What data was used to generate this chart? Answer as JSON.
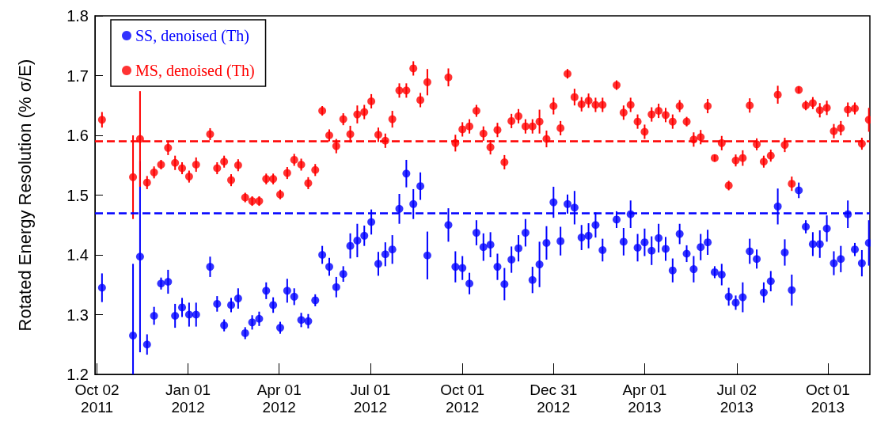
{
  "chart_data": {
    "type": "scatter",
    "ylabel": "Rotated Energy Resolution (% σ/E)",
    "xlim": [
      "2011-09-30",
      "2013-11-12"
    ],
    "xticks": [
      {
        "value": "2011-10-02",
        "label": "Oct 02\n2011"
      },
      {
        "value": "2012-01-01",
        "label": "Jan 01\n2012"
      },
      {
        "value": "2012-04-01",
        "label": "Apr 01\n2012"
      },
      {
        "value": "2012-07-01",
        "label": "Jul 01\n2012"
      },
      {
        "value": "2012-10-01",
        "label": "Oct 01\n2012"
      },
      {
        "value": "2012-12-31",
        "label": "Dec 31\n2012"
      },
      {
        "value": "2013-04-01",
        "label": "Apr 01\n2013"
      },
      {
        "value": "2013-07-02",
        "label": "Jul 02\n2013"
      },
      {
        "value": "2013-10-01",
        "label": "Oct 01\n2013"
      }
    ],
    "ylim": [
      1.2,
      1.8
    ],
    "yticks": [
      1.2,
      1.3,
      1.4,
      1.5,
      1.6,
      1.7,
      1.8
    ],
    "grid": false,
    "legend": "top left",
    "marker": "circle",
    "ref_lines": [
      {
        "axis": "y",
        "value": 1.59,
        "color": "#ff0000",
        "line_style": "dashed"
      },
      {
        "axis": "y",
        "value": 1.47,
        "color": "#0000ff",
        "line_style": "dashed"
      }
    ],
    "series": [
      {
        "name": "SS, denoised (Th)",
        "color": "#0000ff",
        "x": [
          "2011-10-07",
          "2011-11-07",
          "2011-11-14",
          "2011-11-21",
          "2011-11-28",
          "2011-12-05",
          "2011-12-12",
          "2011-12-19",
          "2011-12-26",
          "2012-01-02",
          "2012-01-09",
          "2012-01-23",
          "2012-01-30",
          "2012-02-06",
          "2012-02-13",
          "2012-02-20",
          "2012-02-27",
          "2012-03-05",
          "2012-03-12",
          "2012-03-19",
          "2012-03-26",
          "2012-04-02",
          "2012-04-09",
          "2012-04-16",
          "2012-04-23",
          "2012-04-30",
          "2012-05-07",
          "2012-05-14",
          "2012-05-21",
          "2012-05-28",
          "2012-06-04",
          "2012-06-11",
          "2012-06-18",
          "2012-06-25",
          "2012-07-02",
          "2012-07-09",
          "2012-07-16",
          "2012-07-23",
          "2012-07-30",
          "2012-08-06",
          "2012-08-13",
          "2012-08-20",
          "2012-08-27",
          "2012-09-17",
          "2012-09-24",
          "2012-10-01",
          "2012-10-08",
          "2012-10-15",
          "2012-10-22",
          "2012-10-29",
          "2012-11-05",
          "2012-11-12",
          "2012-11-19",
          "2012-11-26",
          "2012-12-03",
          "2012-12-10",
          "2012-12-17",
          "2012-12-24",
          "2012-12-31",
          "2013-01-07",
          "2013-01-14",
          "2013-01-21",
          "2013-01-28",
          "2013-02-04",
          "2013-02-11",
          "2013-02-18",
          "2013-03-04",
          "2013-03-11",
          "2013-03-18",
          "2013-03-25",
          "2013-04-01",
          "2013-04-08",
          "2013-04-15",
          "2013-04-22",
          "2013-04-29",
          "2013-05-06",
          "2013-05-13",
          "2013-05-20",
          "2013-05-27",
          "2013-06-03",
          "2013-06-10",
          "2013-06-17",
          "2013-06-24",
          "2013-07-01",
          "2013-07-08",
          "2013-07-15",
          "2013-07-22",
          "2013-07-29",
          "2013-08-05",
          "2013-08-12",
          "2013-08-19",
          "2013-08-26",
          "2013-09-02",
          "2013-09-09",
          "2013-09-16",
          "2013-09-23",
          "2013-09-30",
          "2013-10-07",
          "2013-10-14",
          "2013-10-21",
          "2013-10-28",
          "2013-11-04",
          "2013-11-11"
        ],
        "values": [
          1.345,
          1.265,
          1.397,
          1.25,
          1.298,
          1.352,
          1.355,
          1.298,
          1.312,
          1.3,
          1.3,
          1.38,
          1.318,
          1.282,
          1.316,
          1.327,
          1.269,
          1.287,
          1.293,
          1.34,
          1.316,
          1.278,
          1.34,
          1.33,
          1.291,
          1.289,
          1.324,
          1.4,
          1.38,
          1.346,
          1.368,
          1.415,
          1.424,
          1.432,
          1.455,
          1.385,
          1.401,
          1.409,
          1.477,
          1.536,
          1.485,
          1.515,
          1.399,
          1.45,
          1.38,
          1.378,
          1.352,
          1.437,
          1.413,
          1.417,
          1.38,
          1.351,
          1.392,
          1.411,
          1.437,
          1.358,
          1.384,
          1.42,
          1.488,
          1.423,
          1.485,
          1.479,
          1.429,
          1.432,
          1.45,
          1.408,
          1.459,
          1.422,
          1.468,
          1.412,
          1.421,
          1.407,
          1.428,
          1.41,
          1.374,
          1.435,
          1.402,
          1.376,
          1.413,
          1.421,
          1.371,
          1.367,
          1.33,
          1.32,
          1.329,
          1.406,
          1.393,
          1.337,
          1.356,
          1.481,
          1.404,
          1.341,
          1.508,
          1.447,
          1.418,
          1.418,
          1.444,
          1.386,
          1.393,
          1.468,
          1.409,
          1.386,
          1.42
        ],
        "errors": [
          0.024,
          [
            1.2,
            1.385
          ],
          0.16,
          0.017,
          0.015,
          0.01,
          0.02,
          0.02,
          0.016,
          0.02,
          0.02,
          0.017,
          0.013,
          0.01,
          0.012,
          0.017,
          0.01,
          0.012,
          0.012,
          0.014,
          0.013,
          0.01,
          0.02,
          0.014,
          0.012,
          0.012,
          0.01,
          0.015,
          0.015,
          0.017,
          0.013,
          0.021,
          0.028,
          0.017,
          0.021,
          0.02,
          0.02,
          0.024,
          0.025,
          0.023,
          0.025,
          0.023,
          0.04,
          0.028,
          0.026,
          0.02,
          0.018,
          0.021,
          0.023,
          0.021,
          0.022,
          0.027,
          0.022,
          0.022,
          0.023,
          0.022,
          0.038,
          0.028,
          0.026,
          0.024,
          0.016,
          0.028,
          0.021,
          0.021,
          0.021,
          0.019,
          0.014,
          0.023,
          0.023,
          0.023,
          0.023,
          0.024,
          0.024,
          0.02,
          0.02,
          0.017,
          0.014,
          0.022,
          0.022,
          0.021,
          0.01,
          0.018,
          0.015,
          0.012,
          0.025,
          0.021,
          0.016,
          0.017,
          0.017,
          0.03,
          0.022,
          0.026,
          0.013,
          0.011,
          0.02,
          0.023,
          0.022,
          0.02,
          0.022,
          0.023,
          0.011,
          0.022,
          0.038
        ]
      },
      {
        "name": "MS, denoised (Th)",
        "color": "#ff0000",
        "x": [
          "2011-10-07",
          "2011-11-07",
          "2011-11-14",
          "2011-11-21",
          "2011-11-28",
          "2011-12-05",
          "2011-12-12",
          "2011-12-19",
          "2011-12-26",
          "2012-01-02",
          "2012-01-09",
          "2012-01-23",
          "2012-01-30",
          "2012-02-06",
          "2012-02-13",
          "2012-02-20",
          "2012-02-27",
          "2012-03-05",
          "2012-03-12",
          "2012-03-19",
          "2012-03-26",
          "2012-04-02",
          "2012-04-09",
          "2012-04-16",
          "2012-04-23",
          "2012-04-30",
          "2012-05-07",
          "2012-05-14",
          "2012-05-21",
          "2012-05-28",
          "2012-06-04",
          "2012-06-11",
          "2012-06-18",
          "2012-06-25",
          "2012-07-02",
          "2012-07-09",
          "2012-07-16",
          "2012-07-23",
          "2012-07-30",
          "2012-08-06",
          "2012-08-13",
          "2012-08-20",
          "2012-08-27",
          "2012-09-17",
          "2012-09-24",
          "2012-10-01",
          "2012-10-08",
          "2012-10-15",
          "2012-10-22",
          "2012-10-29",
          "2012-11-05",
          "2012-11-12",
          "2012-11-19",
          "2012-11-26",
          "2012-12-03",
          "2012-12-10",
          "2012-12-17",
          "2012-12-24",
          "2012-12-31",
          "2013-01-07",
          "2013-01-14",
          "2013-01-21",
          "2013-01-28",
          "2013-02-04",
          "2013-02-11",
          "2013-02-18",
          "2013-03-04",
          "2013-03-11",
          "2013-03-18",
          "2013-03-25",
          "2013-04-01",
          "2013-04-08",
          "2013-04-15",
          "2013-04-22",
          "2013-04-29",
          "2013-05-06",
          "2013-05-13",
          "2013-05-20",
          "2013-05-27",
          "2013-06-03",
          "2013-06-10",
          "2013-06-17",
          "2013-06-24",
          "2013-07-01",
          "2013-07-08",
          "2013-07-15",
          "2013-07-22",
          "2013-07-29",
          "2013-08-05",
          "2013-08-12",
          "2013-08-19",
          "2013-08-26",
          "2013-09-02",
          "2013-09-09",
          "2013-09-16",
          "2013-09-23",
          "2013-09-30",
          "2013-10-07",
          "2013-10-14",
          "2013-10-21",
          "2013-10-28",
          "2013-11-04",
          "2013-11-11"
        ],
        "values": [
          1.626,
          1.53,
          1.594,
          1.521,
          1.538,
          1.551,
          1.579,
          1.554,
          1.545,
          1.531,
          1.551,
          1.602,
          1.545,
          1.556,
          1.525,
          1.55,
          1.496,
          1.49,
          1.49,
          1.527,
          1.527,
          1.501,
          1.537,
          1.559,
          1.551,
          1.52,
          1.542,
          1.641,
          1.6,
          1.582,
          1.627,
          1.602,
          1.635,
          1.639,
          1.657,
          1.601,
          1.591,
          1.627,
          1.675,
          1.675,
          1.712,
          1.659,
          1.689,
          1.697,
          1.587,
          1.61,
          1.615,
          1.641,
          1.603,
          1.58,
          1.609,
          1.555,
          1.624,
          1.632,
          1.615,
          1.615,
          1.623,
          1.594,
          1.649,
          1.612,
          1.703,
          1.664,
          1.652,
          1.658,
          1.651,
          1.651,
          1.684,
          1.638,
          1.651,
          1.623,
          1.606,
          1.635,
          1.641,
          1.634,
          1.623,
          1.649,
          1.623,
          1.593,
          1.597,
          1.649,
          1.562,
          1.587,
          1.516,
          1.558,
          1.562,
          1.65,
          1.585,
          1.556,
          1.566,
          1.668,
          1.584,
          1.519,
          1.676,
          1.65,
          1.654,
          1.642,
          1.646,
          1.607,
          1.612,
          1.643,
          1.645,
          1.586,
          1.626
        ],
        "errors": [
          0.013,
          0.07,
          0.08,
          0.011,
          0.01,
          0.008,
          0.012,
          0.012,
          0.01,
          0.01,
          0.012,
          0.01,
          0.01,
          0.01,
          0.01,
          0.01,
          0.008,
          0.008,
          0.008,
          0.009,
          0.009,
          0.008,
          0.01,
          0.01,
          0.01,
          0.01,
          0.01,
          0.008,
          0.01,
          0.012,
          0.01,
          0.014,
          0.015,
          0.012,
          0.012,
          0.012,
          0.012,
          0.014,
          0.012,
          0.012,
          0.012,
          0.012,
          0.022,
          0.015,
          0.014,
          0.012,
          0.012,
          0.01,
          0.012,
          0.012,
          0.012,
          0.012,
          0.012,
          0.012,
          0.012,
          0.012,
          0.02,
          0.014,
          0.014,
          0.012,
          0.008,
          0.014,
          0.012,
          0.012,
          0.012,
          0.012,
          0.008,
          0.012,
          0.012,
          0.012,
          0.012,
          0.012,
          0.012,
          0.012,
          0.012,
          0.01,
          0.008,
          0.012,
          0.012,
          0.012,
          0.006,
          0.012,
          0.008,
          0.01,
          0.013,
          0.012,
          0.01,
          0.01,
          0.01,
          0.015,
          0.012,
          0.012,
          0.006,
          0.008,
          0.01,
          0.012,
          0.012,
          0.012,
          0.012,
          0.012,
          0.01,
          0.01,
          0.02
        ]
      }
    ]
  }
}
